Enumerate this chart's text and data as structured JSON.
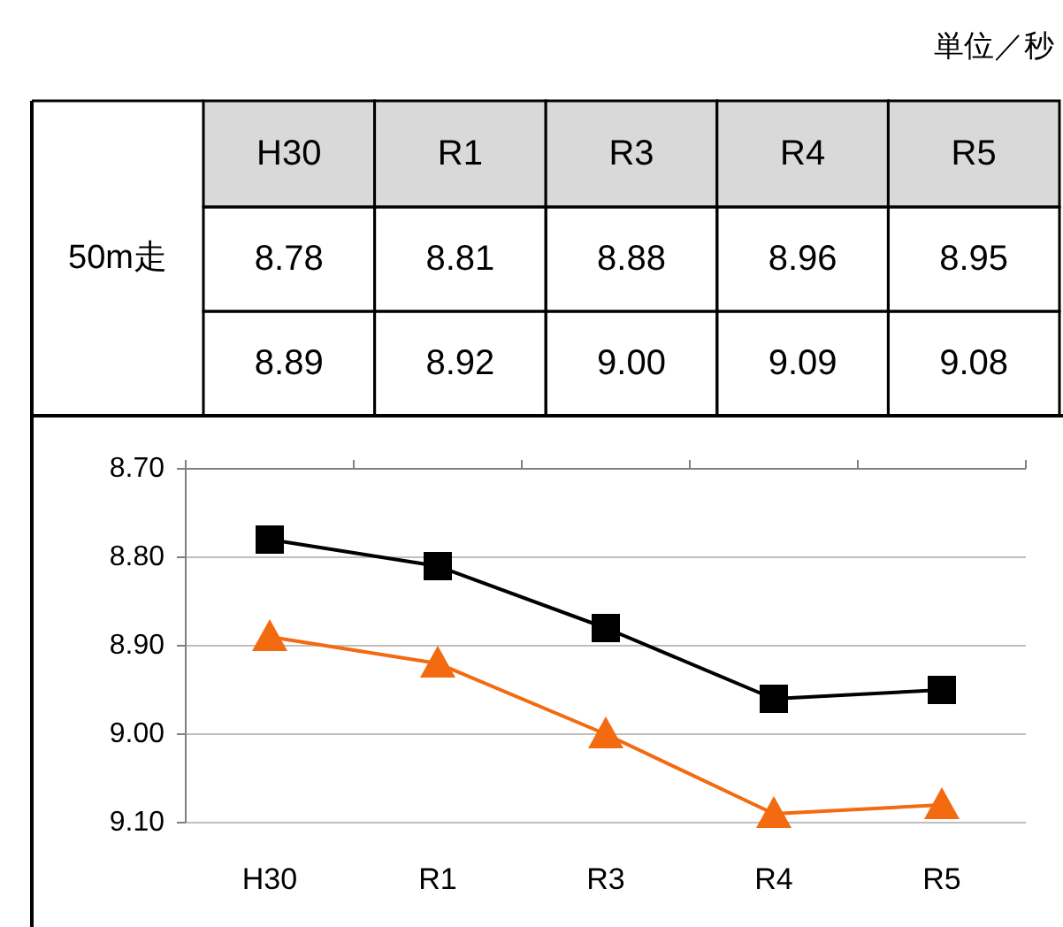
{
  "chart_data": {
    "type": "line",
    "annotations": [
      "単位／秒",
      "50m走"
    ],
    "categories": [
      "H30",
      "R1",
      "R3",
      "R4",
      "R5"
    ],
    "series": [
      {
        "color": "#000000",
        "marker": "square",
        "values": [
          8.78,
          8.81,
          8.88,
          8.96,
          8.95
        ],
        "value_labels": [
          "8.78",
          "8.81",
          "8.88",
          "8.96",
          "8.95"
        ]
      },
      {
        "color": "#f36a10",
        "marker": "triangle",
        "values": [
          8.89,
          8.92,
          9.0,
          9.09,
          9.08
        ],
        "value_labels": [
          "8.89",
          "8.92",
          "9.00",
          "9.09",
          "9.08"
        ]
      }
    ],
    "ylim": [
      9.1,
      8.7
    ],
    "yticks": [
      {
        "value": 8.7,
        "label": "8.70"
      },
      {
        "value": 8.8,
        "label": "8.80"
      },
      {
        "value": 8.9,
        "label": "8.90"
      },
      {
        "value": 9.0,
        "label": "9.00"
      },
      {
        "value": 9.1,
        "label": "9.10"
      }
    ],
    "grid": "y",
    "line_style": "solid"
  }
}
